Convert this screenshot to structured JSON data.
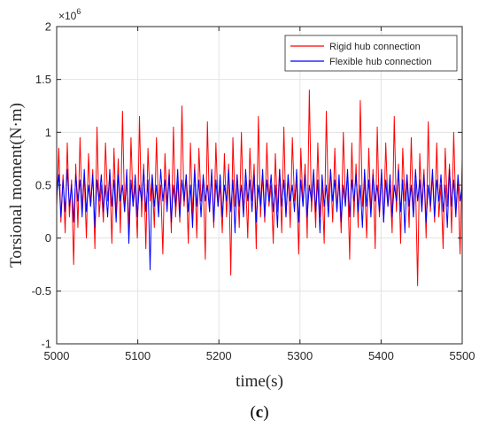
{
  "chart_data": {
    "type": "line",
    "xlabel": "time(s)",
    "ylabel": "Torsional moment(N·m)",
    "xlim": [
      5000,
      5500
    ],
    "ylim": [
      -1,
      2
    ],
    "xticks": [
      "5000",
      "5100",
      "5200",
      "5300",
      "5400",
      "5500"
    ],
    "yticks": [
      "-1",
      "-0.5",
      "0",
      "0.5",
      "1",
      "1.5",
      "2"
    ],
    "y_multiplier": {
      "base": "×10",
      "exponent": "6"
    },
    "grid": true,
    "legend_position": "top-right",
    "series": [
      {
        "name": "Rigid hub connection",
        "color": "#ff0000",
        "x_start": 5000,
        "x_end": 5500,
        "values": [
          0.3,
          0.85,
          0.15,
          0.6,
          0.05,
          0.9,
          0.2,
          0.55,
          -0.25,
          0.7,
          0.1,
          0.95,
          0.25,
          0.6,
          0.0,
          0.8,
          0.3,
          0.65,
          -0.1,
          1.05,
          0.2,
          0.5,
          0.15,
          0.9,
          0.35,
          0.6,
          -0.05,
          0.85,
          0.2,
          0.75,
          0.05,
          1.2,
          0.25,
          0.55,
          0.1,
          0.95,
          0.3,
          0.5,
          0.0,
          1.15,
          0.2,
          0.7,
          -0.1,
          0.85,
          0.35,
          0.6,
          0.1,
          0.95,
          0.25,
          0.5,
          -0.15,
          0.8,
          0.3,
          0.65,
          0.05,
          1.05,
          0.2,
          0.55,
          0.15,
          1.25,
          0.3,
          0.6,
          -0.05,
          0.9,
          0.2,
          0.7,
          0.0,
          0.85,
          0.35,
          0.55,
          -0.2,
          1.1,
          0.25,
          0.6,
          0.1,
          0.9,
          0.3,
          0.5,
          0.05,
          0.8,
          0.2,
          0.7,
          -0.35,
          0.95,
          0.3,
          0.6,
          0.1,
          1.0,
          0.25,
          0.55,
          0.0,
          0.85,
          0.35,
          0.7,
          -0.1,
          1.15,
          0.2,
          0.6,
          0.15,
          0.9,
          0.3,
          0.5,
          -0.05,
          0.8,
          0.25,
          0.65,
          0.05,
          1.05,
          0.2,
          0.6,
          0.1,
          0.95,
          0.35,
          0.55,
          -0.15,
          0.85,
          0.3,
          0.7,
          0.0,
          1.4,
          0.25,
          0.6,
          0.1,
          0.9,
          0.2,
          0.5,
          -0.05,
          1.2,
          0.3,
          0.65,
          0.15,
          0.85,
          0.25,
          0.55,
          0.05,
          1.0,
          0.35,
          0.6,
          -0.2,
          0.9,
          0.2,
          0.7,
          0.1,
          1.3,
          0.3,
          0.55,
          0.0,
          0.85,
          0.25,
          0.65,
          -0.1,
          1.05,
          0.2,
          0.6,
          0.15,
          0.9,
          0.3,
          0.5,
          0.05,
          1.15,
          0.25,
          0.7,
          -0.05,
          0.85,
          0.35,
          0.6,
          0.1,
          0.95,
          0.2,
          0.55,
          -0.45,
          0.8,
          0.3,
          0.65,
          0.0,
          1.1,
          0.25,
          0.6,
          0.15,
          0.9,
          0.2,
          0.5,
          -0.1,
          0.85,
          0.3,
          0.7,
          0.05,
          1.0,
          0.25,
          0.55,
          -0.15,
          0.75
        ]
      },
      {
        "name": "Flexible hub connection",
        "color": "#0000ff",
        "x_start": 5000,
        "x_end": 5500,
        "values": [
          0.4,
          0.6,
          0.2,
          0.55,
          0.25,
          0.65,
          0.3,
          0.5,
          0.15,
          0.6,
          0.35,
          0.55,
          0.2,
          0.65,
          0.25,
          0.5,
          0.3,
          0.6,
          0.1,
          0.55,
          0.35,
          0.6,
          0.25,
          0.5,
          0.2,
          0.65,
          0.3,
          0.55,
          0.15,
          0.6,
          0.35,
          0.5,
          0.25,
          0.65,
          -0.05,
          0.55,
          0.3,
          0.6,
          0.2,
          0.5,
          0.35,
          0.65,
          0.25,
          0.55,
          -0.3,
          0.6,
          0.3,
          0.5,
          0.2,
          0.65,
          0.35,
          0.55,
          0.25,
          0.6,
          0.15,
          0.5,
          0.3,
          0.65,
          0.2,
          0.55,
          0.35,
          0.6,
          0.25,
          0.5,
          0.1,
          0.65,
          0.3,
          0.55,
          0.2,
          0.6,
          0.35,
          0.5,
          0.25,
          0.65,
          0.15,
          0.55,
          0.3,
          0.6,
          0.2,
          0.5,
          0.35,
          0.65,
          0.25,
          0.55,
          0.05,
          0.6,
          0.3,
          0.5,
          0.2,
          0.65,
          0.35,
          0.55,
          0.25,
          0.6,
          0.15,
          0.5,
          0.3,
          0.65,
          0.2,
          0.55,
          0.35,
          0.6,
          0.25,
          0.5,
          0.1,
          0.65,
          0.3,
          0.55,
          0.2,
          0.6,
          0.35,
          0.5,
          0.25,
          0.65,
          0.15,
          0.55,
          0.3,
          0.6,
          0.2,
          0.5,
          0.35,
          0.65,
          0.25,
          0.55,
          0.05,
          0.6,
          0.3,
          0.5,
          0.2,
          0.65,
          0.35,
          0.55,
          0.25,
          0.6,
          0.15,
          0.5,
          0.3,
          0.65,
          0.2,
          0.55,
          0.35,
          0.6,
          0.25,
          0.5,
          0.1,
          0.65,
          0.3,
          0.55,
          0.2,
          0.6,
          0.35,
          0.5,
          0.25,
          0.65,
          0.15,
          0.55,
          0.3,
          0.6,
          0.2,
          0.5,
          0.35,
          0.65,
          0.25,
          0.55,
          0.05,
          0.6,
          0.3,
          0.5,
          0.2,
          0.65,
          0.35,
          0.55,
          0.25,
          0.6,
          0.15,
          0.5,
          0.3,
          0.65,
          0.2,
          0.55,
          0.35,
          0.6,
          0.25,
          0.5,
          0.1,
          0.65,
          0.3,
          0.55,
          0.2,
          0.6,
          0.35,
          0.5
        ]
      }
    ]
  },
  "caption": {
    "open": "(",
    "letter": "c",
    "close": ")"
  }
}
